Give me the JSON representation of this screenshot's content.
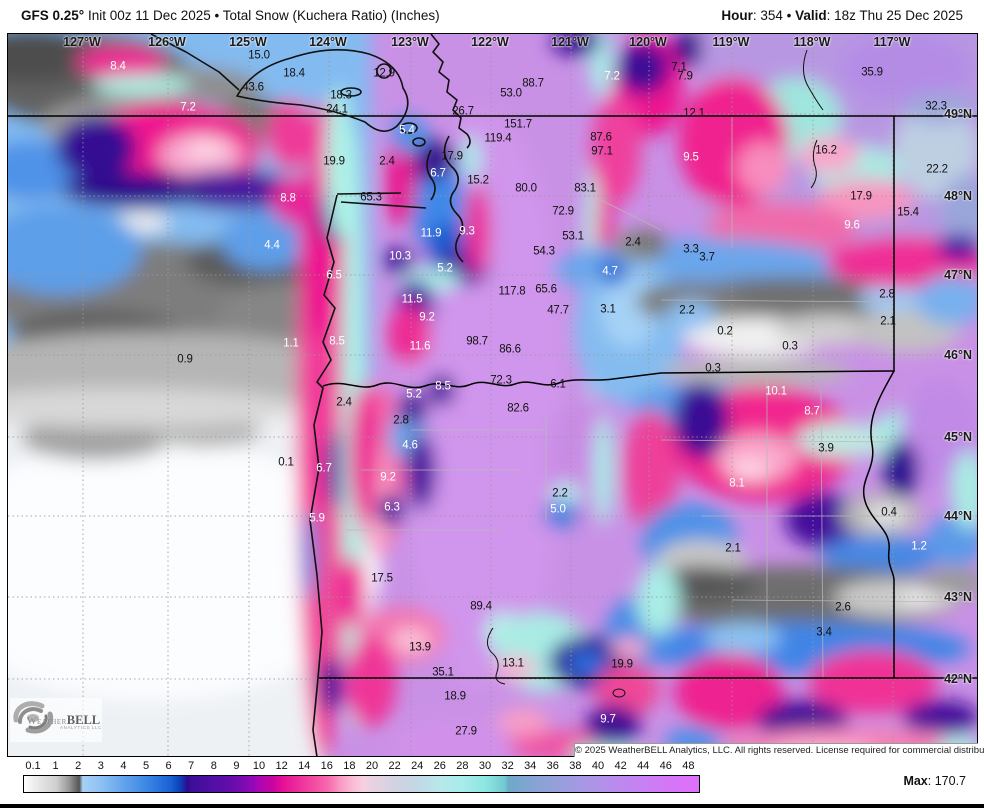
{
  "header": {
    "title_model": "GFS 0.25°",
    "title_rest": " Init 00z 11 Dec 2025 • Total Snow (Kuchera Ratio) (Inches)",
    "hour_label": "Hour",
    "hour_value": ": 354 • ",
    "valid_label": "Valid",
    "valid_value": ": 18z Thu 25 Dec 2025"
  },
  "legend": {
    "ticks": [
      "0.1",
      "1",
      "2",
      "3",
      "4",
      "5",
      "6",
      "7",
      "8",
      "9",
      "10",
      "12",
      "14",
      "16",
      "18",
      "20",
      "22",
      "24",
      "26",
      "28",
      "30",
      "32",
      "34",
      "36",
      "38",
      "40",
      "42",
      "44",
      "46",
      "48"
    ],
    "max_label": "Max",
    "max_value": ": 170.7"
  },
  "footer": {
    "copyright": "© 2025 WeatherBELL Analytics, LLC. All rights reserved. License required for commercial distribution."
  },
  "logo": {
    "weather": "Weather",
    "bell": "BELL",
    "sub": "Analytics LLC"
  },
  "palette": {
    "violet_high": "#c991e6",
    "hot_pink": "#ee1690",
    "indigo": "#3a0f96",
    "navy": "#0c3fb8",
    "light_blue": "#8cc0f2",
    "cyan_fringe": "#aef2e6",
    "gray_ocean": "#7d7d7d",
    "pale_pink": "#fbaacd",
    "steel_blue": "#84a4d2",
    "white_low": "#ffffff"
  },
  "map": {
    "lon_labels": [
      [
        "127°W",
        82
      ],
      [
        "126°W",
        167
      ],
      [
        "125°W",
        248
      ],
      [
        "124°W",
        328
      ],
      [
        "123°W",
        410
      ],
      [
        "122°W",
        490
      ],
      [
        "121°W",
        570
      ],
      [
        "120°W",
        648
      ],
      [
        "119°W",
        731
      ],
      [
        "118°W",
        812
      ],
      [
        "117°W",
        892
      ]
    ],
    "lat_labels": [
      [
        "49°N",
        114
      ],
      [
        "48°N",
        196
      ],
      [
        "47°N",
        275
      ],
      [
        "46°N",
        355
      ],
      [
        "45°N",
        437
      ],
      [
        "44°N",
        516
      ],
      [
        "43°N",
        597
      ],
      [
        "42°N",
        679
      ]
    ],
    "values": [
      [
        "8.4",
        118,
        67,
        "w"
      ],
      [
        "15.0",
        259,
        56,
        "b"
      ],
      [
        "18.4",
        294,
        74,
        "b"
      ],
      [
        "43.6",
        253,
        88,
        "b"
      ],
      [
        "7.2",
        188,
        108,
        "w"
      ],
      [
        "8.8",
        288,
        199,
        "w"
      ],
      [
        "12.9",
        384,
        74,
        "b"
      ],
      [
        "18.3",
        341,
        96,
        "b"
      ],
      [
        "24.1",
        337,
        110,
        "b"
      ],
      [
        "26.7",
        463,
        112,
        "b"
      ],
      [
        "53.0",
        511,
        94,
        "b"
      ],
      [
        "88.7",
        533,
        84,
        "b"
      ],
      [
        "151.7",
        518,
        125,
        "b"
      ],
      [
        "119.4",
        498,
        139,
        "b"
      ],
      [
        "87.6",
        601,
        138,
        "b"
      ],
      [
        "97.1",
        602,
        152,
        "b"
      ],
      [
        "7.2",
        612,
        77,
        "w"
      ],
      [
        "5.4",
        407,
        131,
        "w"
      ],
      [
        "17.9",
        452,
        157,
        "b"
      ],
      [
        "2.4",
        387,
        162,
        "b"
      ],
      [
        "19.9",
        334,
        162,
        "b"
      ],
      [
        "6.7",
        438,
        174,
        "w"
      ],
      [
        "15.2",
        478,
        181,
        "b"
      ],
      [
        "80.0",
        526,
        189,
        "b"
      ],
      [
        "83.1",
        585,
        189,
        "b"
      ],
      [
        "65.3",
        371,
        198,
        "b"
      ],
      [
        "72.9",
        563,
        212,
        "b"
      ],
      [
        "7.1",
        679,
        68,
        "b"
      ],
      [
        "7.9",
        685,
        77,
        "b"
      ],
      [
        "12.1",
        694,
        114,
        "b"
      ],
      [
        "35.9",
        872,
        73,
        "b"
      ],
      [
        "32.3",
        936,
        107,
        "b"
      ],
      [
        "9.5",
        691,
        158,
        "w"
      ],
      [
        "16.2",
        826,
        151,
        "b"
      ],
      [
        "22.2",
        937,
        170,
        "b"
      ],
      [
        "17.9",
        861,
        197,
        "b"
      ],
      [
        "15.4",
        908,
        213,
        "b"
      ],
      [
        "9.6",
        852,
        226,
        "w"
      ],
      [
        "11.9",
        431,
        234,
        "w"
      ],
      [
        "9.3",
        467,
        232,
        "w"
      ],
      [
        "10.3",
        400,
        257,
        "w"
      ],
      [
        "5.2",
        445,
        269,
        "w"
      ],
      [
        "53.1",
        573,
        237,
        "b"
      ],
      [
        "54.3",
        544,
        252,
        "b"
      ],
      [
        "2.4",
        633,
        243,
        "b"
      ],
      [
        "4.7",
        610,
        272,
        "w"
      ],
      [
        "6.5",
        334,
        276,
        "w"
      ],
      [
        "11.5",
        412,
        300,
        "w"
      ],
      [
        "9.2",
        427,
        318,
        "w"
      ],
      [
        "117.8",
        512,
        292,
        "b"
      ],
      [
        "65.6",
        546,
        290,
        "b"
      ],
      [
        "47.7",
        558,
        311,
        "b"
      ],
      [
        "3.1",
        608,
        310,
        "b"
      ],
      [
        "3.3",
        691,
        250,
        "b"
      ],
      [
        "3.7",
        707,
        258,
        "b"
      ],
      [
        "2.2",
        687,
        311,
        "b"
      ],
      [
        "2.8",
        887,
        295,
        "b"
      ],
      [
        "2.1",
        888,
        322,
        "b"
      ],
      [
        "0.2",
        725,
        332,
        "b"
      ],
      [
        "0.3",
        790,
        347,
        "b"
      ],
      [
        "0.3",
        713,
        369,
        "b"
      ],
      [
        "4.4",
        272,
        246,
        "w"
      ],
      [
        "1.1",
        291,
        344,
        "w"
      ],
      [
        "0.9",
        185,
        360,
        "b"
      ],
      [
        "8.5",
        337,
        342,
        "w"
      ],
      [
        "11.6",
        420,
        347,
        "w"
      ],
      [
        "98.7",
        477,
        342,
        "b"
      ],
      [
        "86.6",
        510,
        350,
        "b"
      ],
      [
        "72.3",
        501,
        381,
        "b"
      ],
      [
        "6.1",
        558,
        385,
        "b"
      ],
      [
        "8.5",
        443,
        387,
        "w"
      ],
      [
        "5.2",
        414,
        395,
        "w"
      ],
      [
        "10.1",
        776,
        392,
        "w"
      ],
      [
        "8.7",
        812,
        412,
        "w"
      ],
      [
        "2.4",
        344,
        403,
        "b"
      ],
      [
        "2.8",
        401,
        421,
        "b"
      ],
      [
        "82.6",
        518,
        409,
        "b"
      ],
      [
        "4.6",
        410,
        446,
        "w"
      ],
      [
        "3.9",
        826,
        449,
        "b"
      ],
      [
        "0.1",
        286,
        463,
        "b"
      ],
      [
        "6.7",
        324,
        469,
        "w"
      ],
      [
        "9.2",
        388,
        478,
        "w"
      ],
      [
        "8.1",
        737,
        484,
        "w"
      ],
      [
        "2.2",
        560,
        494,
        "b"
      ],
      [
        "5.0",
        558,
        510,
        "w"
      ],
      [
        "6.3",
        392,
        508,
        "w"
      ],
      [
        "5.9",
        317,
        519,
        "w"
      ],
      [
        "0.4",
        889,
        513,
        "b"
      ],
      [
        "1.2",
        919,
        547,
        "w"
      ],
      [
        "2.1",
        733,
        549,
        "b"
      ],
      [
        "17.5",
        382,
        579,
        "b"
      ],
      [
        "89.4",
        481,
        607,
        "b"
      ],
      [
        "2.6",
        843,
        608,
        "b"
      ],
      [
        "3.4",
        824,
        633,
        "b"
      ],
      [
        "13.9",
        420,
        648,
        "b"
      ],
      [
        "13.1",
        513,
        664,
        "b"
      ],
      [
        "19.9",
        622,
        665,
        "b"
      ],
      [
        "35.1",
        443,
        673,
        "b"
      ],
      [
        "18.9",
        455,
        697,
        "b"
      ],
      [
        "27.9",
        466,
        732,
        "b"
      ],
      [
        "9.7",
        608,
        720,
        "w"
      ]
    ]
  }
}
